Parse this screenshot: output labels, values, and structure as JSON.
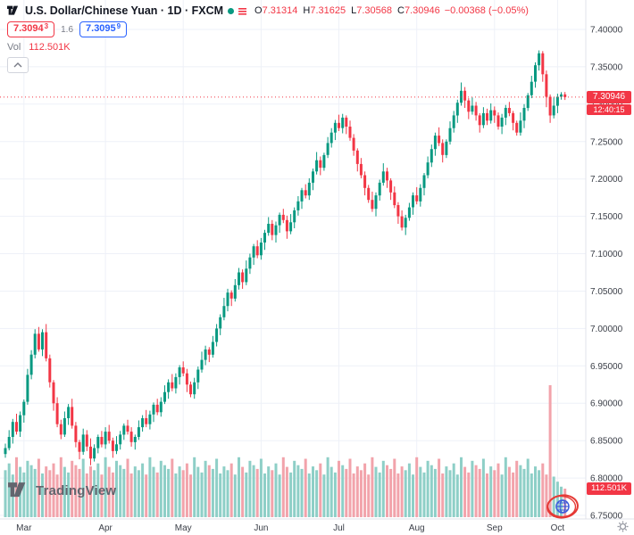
{
  "colors": {
    "up": "#089981",
    "down": "#f23645",
    "volume_up": "#8ecfc7",
    "volume_down": "#f2a3ab",
    "accent_blue": "#2962ff",
    "axis_text": "#3a3e47",
    "grid": "#eef1f8",
    "separator": "#e0e3eb",
    "last_price": "#f23645",
    "brand_gray": "#62656e"
  },
  "header": {
    "symbol_title": "U.S. Dollar/Chinese Yuan · 1D · FXCM",
    "ohlc": {
      "o_label": "O",
      "o": "7.31314",
      "h_label": "H",
      "h": "7.31625",
      "l_label": "L",
      "l": "7.30568",
      "c_label": "C",
      "c": "7.30946",
      "change": "−0.00368 (−0.05%)"
    },
    "bid": {
      "price": "7.3094",
      "pip": "3"
    },
    "spread": "1.6",
    "ask": {
      "price": "7.3095",
      "pip": "9"
    },
    "vol_label": "Vol",
    "vol_value": "112.501K"
  },
  "price_scale": {
    "last_price_label": "7.30946",
    "countdown": "12:40:15",
    "volume_badge": "112.501K"
  },
  "brand": {
    "name": "TradingView"
  },
  "chart_data": {
    "type": "candlestick",
    "title": "U.S. Dollar/Chinese Yuan",
    "interval": "1D",
    "exchange": "FXCM",
    "months": [
      "Mar",
      "Apr",
      "May",
      "Jun",
      "Jul",
      "Aug",
      "Sep",
      "Oct"
    ],
    "month_start_indices": [
      5,
      27,
      48,
      69,
      90,
      111,
      132,
      149
    ],
    "y_ticks": [
      7.4,
      7.35,
      7.3,
      7.25,
      7.2,
      7.15,
      7.1,
      7.05,
      7.0,
      6.95,
      6.9,
      6.85,
      6.8,
      6.75
    ],
    "y_range": [
      6.75,
      7.4
    ],
    "last_price": 7.30946,
    "candles_format": [
      "open",
      "high",
      "low",
      "close"
    ],
    "candles": [
      [
        6.832,
        6.846,
        6.827,
        6.84
      ],
      [
        6.84,
        6.864,
        6.837,
        6.855
      ],
      [
        6.855,
        6.879,
        6.846,
        6.875
      ],
      [
        6.875,
        6.886,
        6.858,
        6.862
      ],
      [
        6.862,
        6.889,
        6.855,
        6.884
      ],
      [
        6.884,
        6.905,
        6.874,
        6.902
      ],
      [
        6.902,
        6.946,
        6.898,
        6.938
      ],
      [
        6.938,
        6.971,
        6.932,
        6.965
      ],
      [
        6.965,
        6.999,
        6.96,
        6.993
      ],
      [
        6.993,
        7.002,
        6.969,
        6.972
      ],
      [
        6.972,
        6.999,
        6.963,
        6.995
      ],
      [
        6.995,
        7.006,
        6.956,
        6.96
      ],
      [
        6.96,
        6.965,
        6.921,
        6.928
      ],
      [
        6.928,
        6.931,
        6.89,
        6.9
      ],
      [
        6.9,
        6.908,
        6.868,
        6.872
      ],
      [
        6.872,
        6.878,
        6.852,
        6.858
      ],
      [
        6.858,
        6.889,
        6.855,
        6.88
      ],
      [
        6.88,
        6.899,
        6.871,
        6.895
      ],
      [
        6.895,
        6.906,
        6.866,
        6.87
      ],
      [
        6.87,
        6.875,
        6.841,
        6.848
      ],
      [
        6.848,
        6.851,
        6.825,
        6.835
      ],
      [
        6.835,
        6.866,
        6.831,
        6.858
      ],
      [
        6.858,
        6.864,
        6.836,
        6.842
      ],
      [
        6.842,
        6.853,
        6.817,
        6.826
      ],
      [
        6.826,
        6.845,
        6.822,
        6.84
      ],
      [
        6.84,
        6.858,
        6.833,
        6.855
      ],
      [
        6.855,
        6.863,
        6.841,
        6.845
      ],
      [
        6.845,
        6.868,
        6.839,
        6.862
      ],
      [
        6.862,
        6.871,
        6.846,
        6.85
      ],
      [
        6.85,
        6.854,
        6.827,
        6.836
      ],
      [
        6.836,
        6.856,
        6.832,
        6.845
      ],
      [
        6.845,
        6.863,
        6.838,
        6.858
      ],
      [
        6.858,
        6.873,
        6.851,
        6.87
      ],
      [
        6.87,
        6.878,
        6.858,
        6.862
      ],
      [
        6.862,
        6.868,
        6.842,
        6.848
      ],
      [
        6.848,
        6.858,
        6.838,
        6.855
      ],
      [
        6.855,
        6.877,
        6.851,
        6.868
      ],
      [
        6.868,
        6.884,
        6.862,
        6.88
      ],
      [
        6.88,
        6.891,
        6.868,
        6.872
      ],
      [
        6.872,
        6.89,
        6.865,
        6.885
      ],
      [
        6.885,
        6.901,
        6.875,
        6.898
      ],
      [
        6.898,
        6.906,
        6.884,
        6.888
      ],
      [
        6.888,
        6.908,
        6.882,
        6.902
      ],
      [
        6.902,
        6.924,
        6.899,
        6.915
      ],
      [
        6.915,
        6.932,
        6.906,
        6.928
      ],
      [
        6.928,
        6.939,
        6.916,
        6.92
      ],
      [
        6.92,
        6.94,
        6.913,
        6.935
      ],
      [
        6.935,
        6.951,
        6.925,
        6.948
      ],
      [
        6.948,
        6.956,
        6.936,
        6.94
      ],
      [
        6.94,
        6.946,
        6.915,
        6.925
      ],
      [
        6.925,
        6.929,
        6.908,
        6.912
      ],
      [
        6.912,
        6.934,
        6.906,
        6.928
      ],
      [
        6.928,
        6.949,
        6.919,
        6.945
      ],
      [
        6.945,
        6.969,
        6.941,
        6.958
      ],
      [
        6.958,
        6.977,
        6.951,
        6.972
      ],
      [
        6.972,
        6.975,
        6.955,
        6.965
      ],
      [
        6.965,
        6.99,
        6.961,
        6.982
      ],
      [
        6.982,
        7.006,
        6.976,
        7.0
      ],
      [
        7.0,
        7.019,
        6.991,
        7.015
      ],
      [
        7.015,
        7.041,
        7.011,
        7.03
      ],
      [
        7.03,
        7.053,
        7.023,
        7.048
      ],
      [
        7.048,
        7.051,
        7.03,
        7.04
      ],
      [
        7.04,
        7.066,
        7.036,
        7.058
      ],
      [
        7.058,
        7.081,
        7.052,
        7.075
      ],
      [
        7.075,
        7.079,
        7.053,
        7.062
      ],
      [
        7.062,
        7.091,
        7.058,
        7.08
      ],
      [
        7.08,
        7.1,
        7.073,
        7.095
      ],
      [
        7.095,
        7.113,
        7.085,
        7.11
      ],
      [
        7.11,
        7.118,
        7.094,
        7.098
      ],
      [
        7.098,
        7.121,
        7.092,
        7.115
      ],
      [
        7.115,
        7.132,
        7.105,
        7.128
      ],
      [
        7.128,
        7.149,
        7.124,
        7.14
      ],
      [
        7.14,
        7.145,
        7.118,
        7.125
      ],
      [
        7.125,
        7.143,
        7.115,
        7.138
      ],
      [
        7.138,
        7.155,
        7.128,
        7.152
      ],
      [
        7.152,
        7.16,
        7.141,
        7.145
      ],
      [
        7.145,
        7.151,
        7.12,
        7.13
      ],
      [
        7.13,
        7.153,
        7.126,
        7.142
      ],
      [
        7.142,
        7.162,
        7.134,
        7.158
      ],
      [
        7.158,
        7.177,
        7.151,
        7.17
      ],
      [
        7.17,
        7.188,
        7.16,
        7.185
      ],
      [
        7.185,
        7.193,
        7.174,
        7.178
      ],
      [
        7.178,
        7.201,
        7.172,
        7.195
      ],
      [
        7.195,
        7.214,
        7.185,
        7.21
      ],
      [
        7.21,
        7.236,
        7.206,
        7.225
      ],
      [
        7.225,
        7.23,
        7.205,
        7.215
      ],
      [
        7.215,
        7.235,
        7.211,
        7.232
      ],
      [
        7.232,
        7.256,
        7.228,
        7.248
      ],
      [
        7.248,
        7.268,
        7.242,
        7.262
      ],
      [
        7.262,
        7.279,
        7.252,
        7.275
      ],
      [
        7.275,
        7.286,
        7.264,
        7.268
      ],
      [
        7.268,
        7.287,
        7.261,
        7.282
      ],
      [
        7.282,
        7.285,
        7.26,
        7.27
      ],
      [
        7.27,
        7.278,
        7.251,
        7.255
      ],
      [
        7.255,
        7.26,
        7.231,
        7.238
      ],
      [
        7.238,
        7.241,
        7.21,
        7.22
      ],
      [
        7.22,
        7.228,
        7.201,
        7.205
      ],
      [
        7.205,
        7.21,
        7.178,
        7.188
      ],
      [
        7.188,
        7.192,
        7.168,
        7.172
      ],
      [
        7.172,
        7.183,
        7.156,
        7.16
      ],
      [
        7.16,
        7.182,
        7.15,
        7.178
      ],
      [
        7.178,
        7.199,
        7.171,
        7.195
      ],
      [
        7.195,
        7.221,
        7.191,
        7.21
      ],
      [
        7.21,
        7.215,
        7.188,
        7.198
      ],
      [
        7.198,
        7.201,
        7.172,
        7.182
      ],
      [
        7.182,
        7.19,
        7.161,
        7.165
      ],
      [
        7.165,
        7.169,
        7.14,
        7.15
      ],
      [
        7.15,
        7.158,
        7.131,
        7.135
      ],
      [
        7.135,
        7.152,
        7.125,
        7.148
      ],
      [
        7.148,
        7.168,
        7.144,
        7.162
      ],
      [
        7.162,
        7.182,
        7.152,
        7.178
      ],
      [
        7.178,
        7.189,
        7.166,
        7.17
      ],
      [
        7.17,
        7.193,
        7.163,
        7.188
      ],
      [
        7.188,
        7.208,
        7.178,
        7.205
      ],
      [
        7.205,
        7.23,
        7.201,
        7.222
      ],
      [
        7.222,
        7.246,
        7.216,
        7.24
      ],
      [
        7.24,
        7.262,
        7.231,
        7.258
      ],
      [
        7.258,
        7.269,
        7.244,
        7.248
      ],
      [
        7.248,
        7.253,
        7.222,
        7.232
      ],
      [
        7.232,
        7.253,
        7.228,
        7.25
      ],
      [
        7.25,
        7.277,
        7.246,
        7.268
      ],
      [
        7.268,
        7.291,
        7.262,
        7.285
      ],
      [
        7.285,
        7.306,
        7.275,
        7.302
      ],
      [
        7.302,
        7.329,
        7.298,
        7.318
      ],
      [
        7.318,
        7.323,
        7.295,
        7.305
      ],
      [
        7.305,
        7.308,
        7.28,
        7.29
      ],
      [
        7.29,
        7.309,
        7.286,
        7.298
      ],
      [
        7.298,
        7.303,
        7.278,
        7.285
      ],
      [
        7.285,
        7.288,
        7.262,
        7.272
      ],
      [
        7.272,
        7.296,
        7.268,
        7.288
      ],
      [
        7.288,
        7.294,
        7.272,
        7.278
      ],
      [
        7.278,
        7.301,
        7.274,
        7.292
      ],
      [
        7.292,
        7.297,
        7.275,
        7.285
      ],
      [
        7.285,
        7.289,
        7.266,
        7.27
      ],
      [
        7.27,
        7.287,
        7.26,
        7.282
      ],
      [
        7.282,
        7.299,
        7.272,
        7.295
      ],
      [
        7.295,
        7.303,
        7.284,
        7.288
      ],
      [
        7.288,
        7.291,
        7.265,
        7.275
      ],
      [
        7.275,
        7.278,
        7.258,
        7.262
      ],
      [
        7.262,
        7.289,
        7.258,
        7.278
      ],
      [
        7.278,
        7.3,
        7.268,
        7.295
      ],
      [
        7.295,
        7.315,
        7.291,
        7.312
      ],
      [
        7.312,
        7.338,
        7.308,
        7.33
      ],
      [
        7.33,
        7.356,
        7.322,
        7.352
      ],
      [
        7.352,
        7.372,
        7.345,
        7.368
      ],
      [
        7.368,
        7.371,
        7.33,
        7.34
      ],
      [
        7.34,
        7.345,
        7.296,
        7.31
      ],
      [
        7.31,
        7.313,
        7.275,
        7.285
      ],
      [
        7.285,
        7.309,
        7.281,
        7.298
      ],
      [
        7.298,
        7.314,
        7.288,
        7.31
      ],
      [
        7.31,
        7.316,
        7.306,
        7.3131
      ],
      [
        7.3131,
        7.3163,
        7.3057,
        7.3095
      ]
    ],
    "volumes_k": [
      185,
      212,
      168,
      236,
      198,
      176,
      222,
      205,
      190,
      230,
      172,
      200,
      185,
      212,
      168,
      236,
      198,
      176,
      222,
      205,
      190,
      230,
      172,
      200,
      185,
      212,
      168,
      236,
      198,
      176,
      222,
      205,
      190,
      230,
      172,
      200,
      185,
      212,
      168,
      236,
      198,
      176,
      222,
      205,
      190,
      230,
      172,
      200,
      185,
      212,
      168,
      236,
      198,
      176,
      222,
      205,
      190,
      230,
      172,
      200,
      185,
      212,
      168,
      236,
      198,
      176,
      222,
      205,
      190,
      230,
      172,
      200,
      185,
      212,
      168,
      236,
      198,
      176,
      222,
      205,
      190,
      230,
      172,
      200,
      185,
      212,
      168,
      236,
      198,
      176,
      222,
      205,
      190,
      230,
      172,
      200,
      185,
      212,
      168,
      236,
      198,
      176,
      222,
      205,
      190,
      230,
      172,
      200,
      185,
      212,
      168,
      236,
      198,
      176,
      222,
      205,
      190,
      230,
      172,
      200,
      185,
      212,
      168,
      236,
      198,
      176,
      222,
      205,
      190,
      230,
      172,
      200,
      185,
      212,
      168,
      236,
      198,
      176,
      222,
      205,
      190,
      230,
      172,
      200,
      185,
      212,
      168,
      520,
      160,
      140,
      120,
      112.501
    ],
    "last_volume_k": 112.501,
    "legend_note": "grid on, price scale right, time scale bottom"
  }
}
